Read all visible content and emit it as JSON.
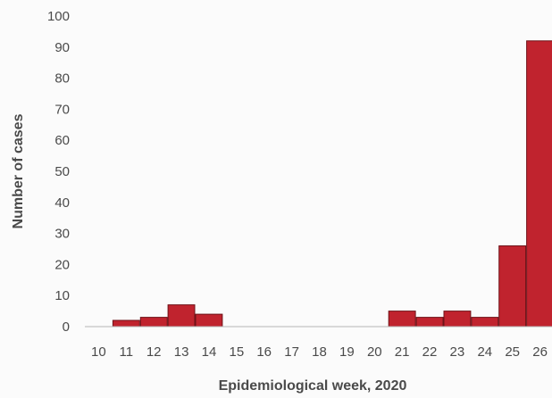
{
  "chart_data": {
    "type": "bar",
    "title": "",
    "xlabel": "Epidemiological week, 2020",
    "ylabel": "Number of cases",
    "ylim": [
      0,
      100
    ],
    "yticks": [
      0,
      10,
      20,
      30,
      40,
      50,
      60,
      70,
      80,
      90,
      100
    ],
    "grid": false,
    "categories": [
      "10",
      "11",
      "12",
      "13",
      "14",
      "15",
      "16",
      "17",
      "18",
      "19",
      "20",
      "21",
      "22",
      "23",
      "24",
      "25",
      "26"
    ],
    "values": [
      0,
      2,
      3,
      7,
      4,
      0,
      0,
      0,
      0,
      0,
      0,
      5,
      3,
      5,
      3,
      26,
      92
    ],
    "colors": {
      "bar_fill": "#c0232e",
      "bar_stroke": "#6e1218",
      "axis": "#b5b5b5",
      "text": "#4a4a4a"
    }
  }
}
